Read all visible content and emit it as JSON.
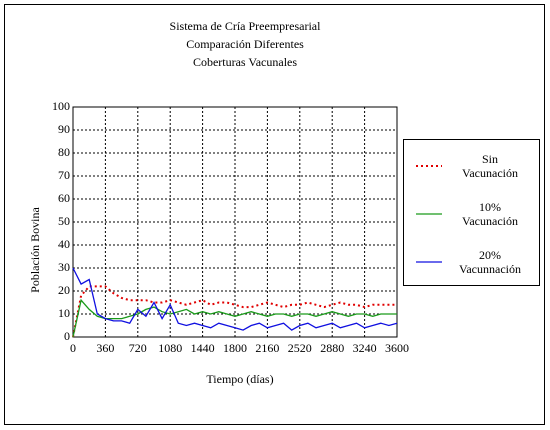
{
  "chart_data": {
    "type": "line",
    "title": [
      "Sistema de Cría Preempresarial",
      "Comparación Diferentes",
      "Coberturas Vacunales"
    ],
    "xlabel": "Tiempo (días)",
    "ylabel": "Población Bovina",
    "x": [
      0,
      90,
      180,
      270,
      360,
      450,
      540,
      630,
      720,
      810,
      900,
      990,
      1080,
      1170,
      1260,
      1350,
      1440,
      1530,
      1620,
      1710,
      1800,
      1890,
      1980,
      2070,
      2160,
      2250,
      2340,
      2430,
      2520,
      2610,
      2700,
      2790,
      2880,
      2970,
      3060,
      3150,
      3240,
      3330,
      3420,
      3510,
      3600
    ],
    "xlim": [
      0,
      3600
    ],
    "xticks": [
      0,
      360,
      720,
      1080,
      1440,
      1800,
      2160,
      2520,
      2880,
      3240,
      3600
    ],
    "ylim": [
      0,
      100
    ],
    "yticks": [
      0,
      10,
      20,
      30,
      40,
      50,
      60,
      70,
      80,
      90,
      100
    ],
    "grid": true,
    "legend": "right",
    "series": [
      {
        "name": "Sin Vacunación",
        "color": "#e00000",
        "dash": "dotted",
        "values": [
          0,
          18,
          22,
          22,
          22,
          19,
          17,
          16,
          16,
          16,
          15,
          15,
          16,
          15,
          14,
          15,
          16,
          14,
          15,
          15,
          14,
          13,
          13,
          14,
          15,
          14,
          13,
          14,
          14,
          15,
          14,
          13,
          14,
          15,
          14,
          14,
          13,
          14,
          14,
          14,
          14
        ]
      },
      {
        "name": "10% Vacunación",
        "color": "#1a9a1a",
        "dash": "solid",
        "values": [
          0,
          16,
          12,
          9,
          8,
          8,
          8,
          9,
          10,
          12,
          13,
          11,
          10,
          11,
          12,
          10,
          11,
          10,
          11,
          10,
          9,
          10,
          11,
          10,
          9,
          10,
          10,
          9,
          10,
          10,
          9,
          10,
          11,
          10,
          9,
          10,
          10,
          9,
          10,
          10,
          10
        ]
      },
      {
        "name": "20% Vacunnación",
        "color": "#1010e0",
        "dash": "solid",
        "values": [
          30,
          23,
          25,
          10,
          8,
          7,
          7,
          6,
          12,
          9,
          15,
          8,
          14,
          6,
          5,
          6,
          5,
          4,
          6,
          5,
          4,
          3,
          5,
          6,
          4,
          5,
          6,
          3,
          5,
          6,
          4,
          5,
          6,
          4,
          5,
          6,
          4,
          5,
          6,
          5,
          6
        ]
      }
    ]
  }
}
